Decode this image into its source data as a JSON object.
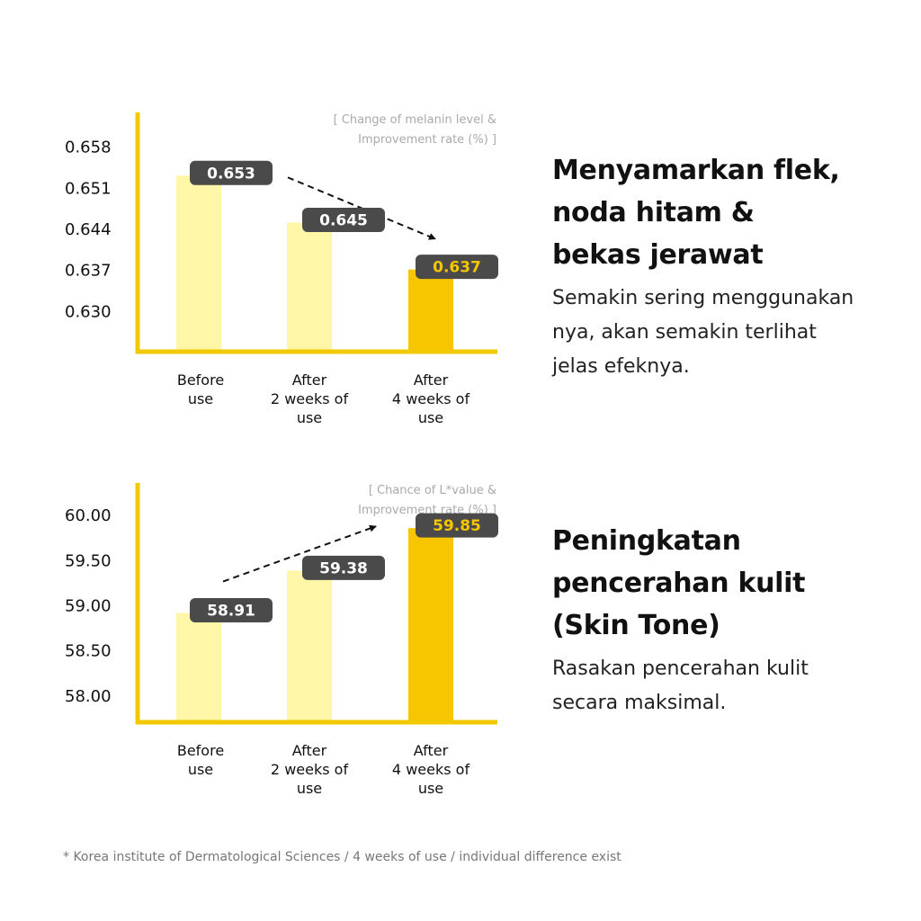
{
  "chart_data": [
    {
      "type": "bar",
      "note": [
        "[ Change of melanin level &",
        "Improvement rate (%) ]"
      ],
      "categories": [
        [
          "Before",
          "use"
        ],
        [
          "After",
          "2 weeks of",
          "use"
        ],
        [
          "After",
          "4 weeks of",
          "use"
        ]
      ],
      "values": [
        0.653,
        0.645,
        0.637
      ],
      "labels": [
        "0.653",
        "0.645",
        "0.637"
      ],
      "yticks": [
        "0.658",
        "0.651",
        "0.644",
        "0.637",
        "0.630"
      ],
      "ylim": [
        0.623,
        0.663
      ],
      "trend": "down",
      "highlight_index": 2,
      "colors": {
        "bar": "#fff6a8",
        "highlight": "#f7c600",
        "axis": "#f2c800",
        "label_bg": "#4a4a4a"
      }
    },
    {
      "type": "bar",
      "note": [
        "[ Chance of L*value &",
        "Improvement rate (%) ]"
      ],
      "categories": [
        [
          "Before",
          "use"
        ],
        [
          "After",
          "2 weeks of",
          "use"
        ],
        [
          "After",
          "4 weeks of",
          "use"
        ]
      ],
      "values": [
        58.91,
        59.38,
        59.85
      ],
      "labels": [
        "58.91",
        "59.38",
        "59.85"
      ],
      "yticks": [
        "60.00",
        "59.50",
        "59.00",
        "58.50",
        "58.00"
      ],
      "ylim": [
        57.7,
        60.3
      ],
      "trend": "up",
      "highlight_index": 2,
      "colors": {
        "bar": "#fff6a8",
        "highlight": "#f7c600",
        "axis": "#f2c800",
        "label_bg": "#4a4a4a"
      }
    }
  ],
  "sections": [
    {
      "title": [
        "Menyamarkan flek,",
        "noda hitam &",
        "bekas jerawat"
      ],
      "body": [
        "Semakin sering menggunakan",
        "nya, akan semakin terlihat",
        "jelas efeknya."
      ]
    },
    {
      "title": [
        "Peningkatan",
        "pencerahan kulit",
        "(Skin Tone)"
      ],
      "body": [
        "Rasakan pencerahan kulit",
        "secara maksimal."
      ]
    }
  ],
  "footnote": "* Korea institute of Dermatological Sciences / 4 weeks of use / individual difference exist"
}
